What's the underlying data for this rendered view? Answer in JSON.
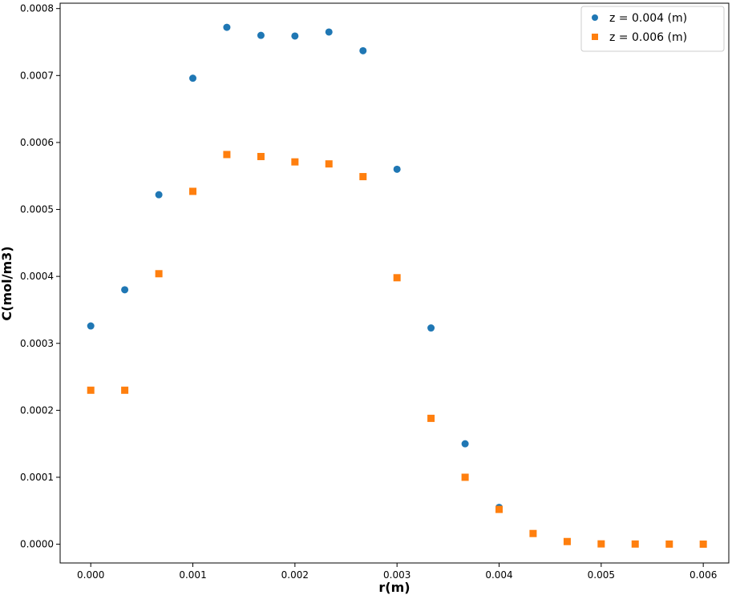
{
  "chart_data": {
    "type": "scatter",
    "title": "",
    "xlabel": "r(m)",
    "ylabel": "C(mol/m3)",
    "xlim": [
      -0.0003,
      0.00625
    ],
    "ylim": [
      -2.8e-05,
      0.000808
    ],
    "xticks": [
      "0.000",
      "0.001",
      "0.002",
      "0.003",
      "0.004",
      "0.005",
      "0.006"
    ],
    "xtick_values": [
      0,
      0.001,
      0.002,
      0.003,
      0.004,
      0.005,
      0.006
    ],
    "yticks": [
      "0.0000",
      "0.0001",
      "0.0002",
      "0.0003",
      "0.0004",
      "0.0005",
      "0.0006",
      "0.0007",
      "0.0008"
    ],
    "ytick_values": [
      0,
      0.0001,
      0.0002,
      0.0003,
      0.0004,
      0.0005,
      0.0006,
      0.0007,
      0.0008
    ],
    "grid": false,
    "legend_position": "top-right",
    "series": [
      {
        "name": "z = 0.004 (m)",
        "marker": "circle",
        "color": "#1f77b4",
        "x": [
          0,
          0.000333,
          0.000667,
          0.001,
          0.001333,
          0.001667,
          0.002,
          0.002333,
          0.002667,
          0.003,
          0.003333,
          0.003667,
          0.004
        ],
        "y": [
          0.000326,
          0.00038,
          0.000522,
          0.000696,
          0.000772,
          0.00076,
          0.000759,
          0.000765,
          0.000737,
          0.00056,
          0.000323,
          0.00015,
          5.5e-05
        ]
      },
      {
        "name": "z = 0.006 (m)",
        "marker": "square",
        "color": "#ff7f0e",
        "x": [
          0,
          0.000333,
          0.000667,
          0.001,
          0.001333,
          0.001667,
          0.002,
          0.002333,
          0.002667,
          0.003,
          0.003333,
          0.003667,
          0.004,
          0.004333,
          0.004667,
          0.005,
          0.005333,
          0.005667,
          0.006
        ],
        "y": [
          0.00023,
          0.00023,
          0.000404,
          0.000527,
          0.000582,
          0.000579,
          0.000571,
          0.000568,
          0.000549,
          0.000398,
          0.000188,
          0.0001,
          5.2e-05,
          1.6e-05,
          4e-06,
          5e-07,
          3e-07,
          2e-07,
          1e-07
        ]
      }
    ]
  }
}
